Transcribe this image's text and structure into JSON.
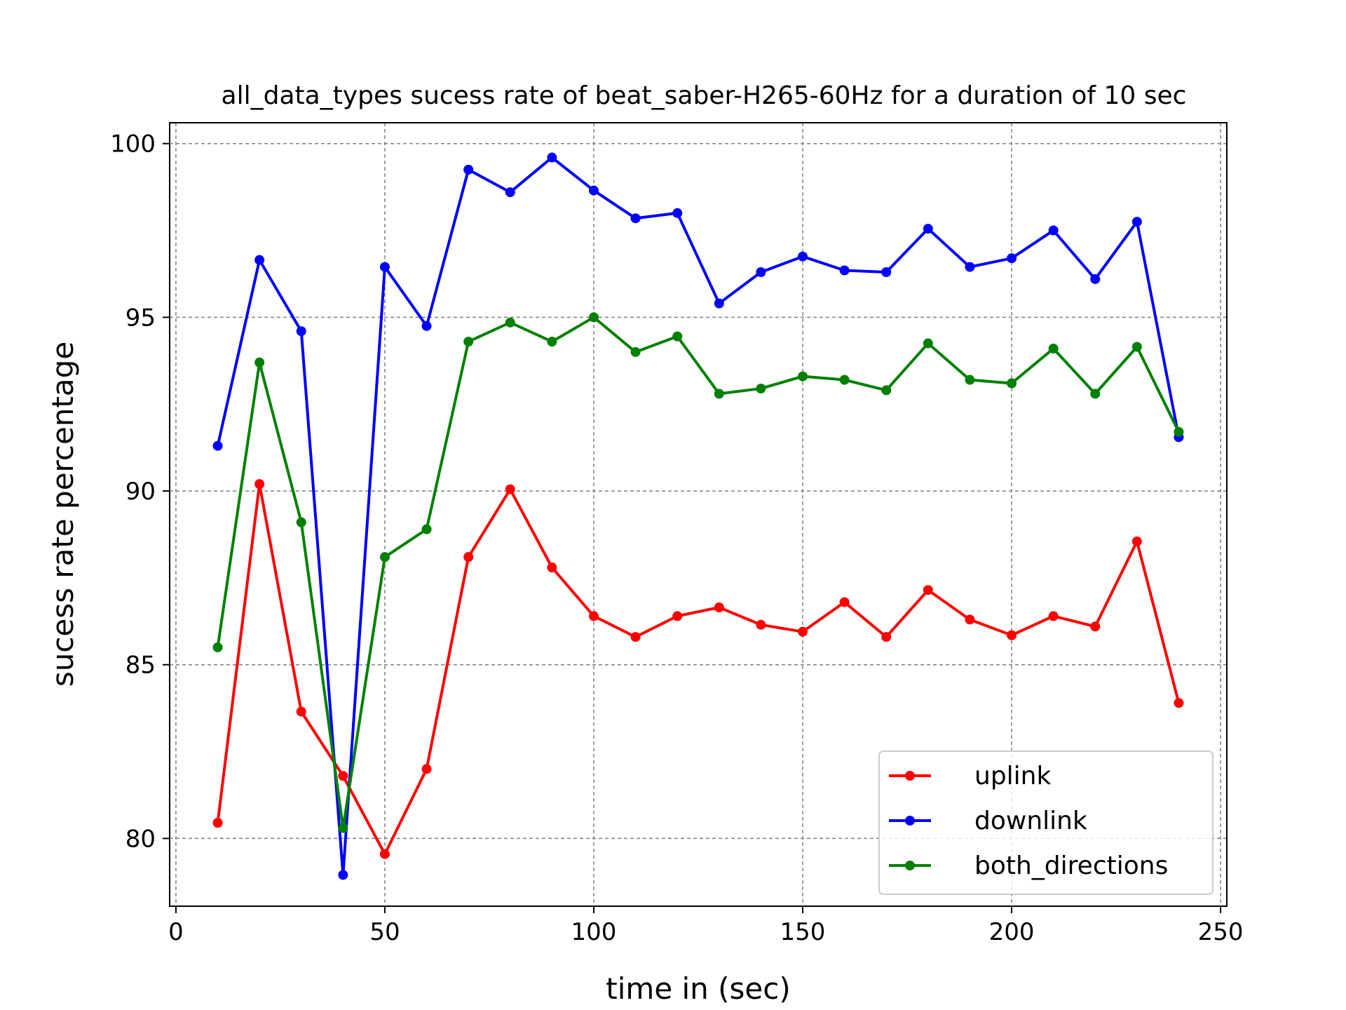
{
  "chart_data": {
    "type": "line",
    "title": "all_data_types sucess rate of beat_saber-H265-60Hz for a duration of 10 sec",
    "xlabel": "time in (sec)",
    "ylabel": "sucess rate percentage",
    "xlim": [
      -1.5,
      251.5
    ],
    "ylim": [
      78.05,
      100.6
    ],
    "xticks": [
      0,
      50,
      100,
      150,
      200,
      250
    ],
    "yticks": [
      80,
      85,
      90,
      95,
      100
    ],
    "xtick_labels": [
      "0",
      "50",
      "100",
      "150",
      "200",
      "250"
    ],
    "ytick_labels": [
      "80",
      "85",
      "90",
      "95",
      "100"
    ],
    "grid": true,
    "legend_position": "lower-right",
    "x": [
      10,
      20,
      30,
      40,
      50,
      60,
      70,
      80,
      90,
      100,
      110,
      120,
      130,
      140,
      150,
      160,
      170,
      180,
      190,
      200,
      210,
      220,
      230,
      240
    ],
    "series": [
      {
        "name": "uplink",
        "color": "#ff0000",
        "values": [
          80.45,
          90.2,
          83.65,
          81.8,
          79.55,
          82.0,
          88.1,
          90.05,
          87.8,
          86.4,
          85.8,
          86.4,
          86.65,
          86.15,
          85.95,
          86.8,
          85.8,
          87.15,
          86.3,
          85.85,
          86.4,
          86.1,
          88.55,
          83.9
        ]
      },
      {
        "name": "downlink",
        "color": "#0000ff",
        "values": [
          91.3,
          96.65,
          94.6,
          78.95,
          96.45,
          94.75,
          99.25,
          98.6,
          99.6,
          98.65,
          97.85,
          98.0,
          95.4,
          96.3,
          96.75,
          96.35,
          96.3,
          97.55,
          96.45,
          96.7,
          97.5,
          96.1,
          97.75,
          91.55
        ]
      },
      {
        "name": "both_directions",
        "color": "#008000",
        "values": [
          85.5,
          93.7,
          89.1,
          80.3,
          88.1,
          88.9,
          94.3,
          94.85,
          94.3,
          95.0,
          94.0,
          94.45,
          92.8,
          92.95,
          93.3,
          93.2,
          92.9,
          94.25,
          93.2,
          93.1,
          94.1,
          92.8,
          94.15,
          91.7
        ]
      }
    ]
  }
}
